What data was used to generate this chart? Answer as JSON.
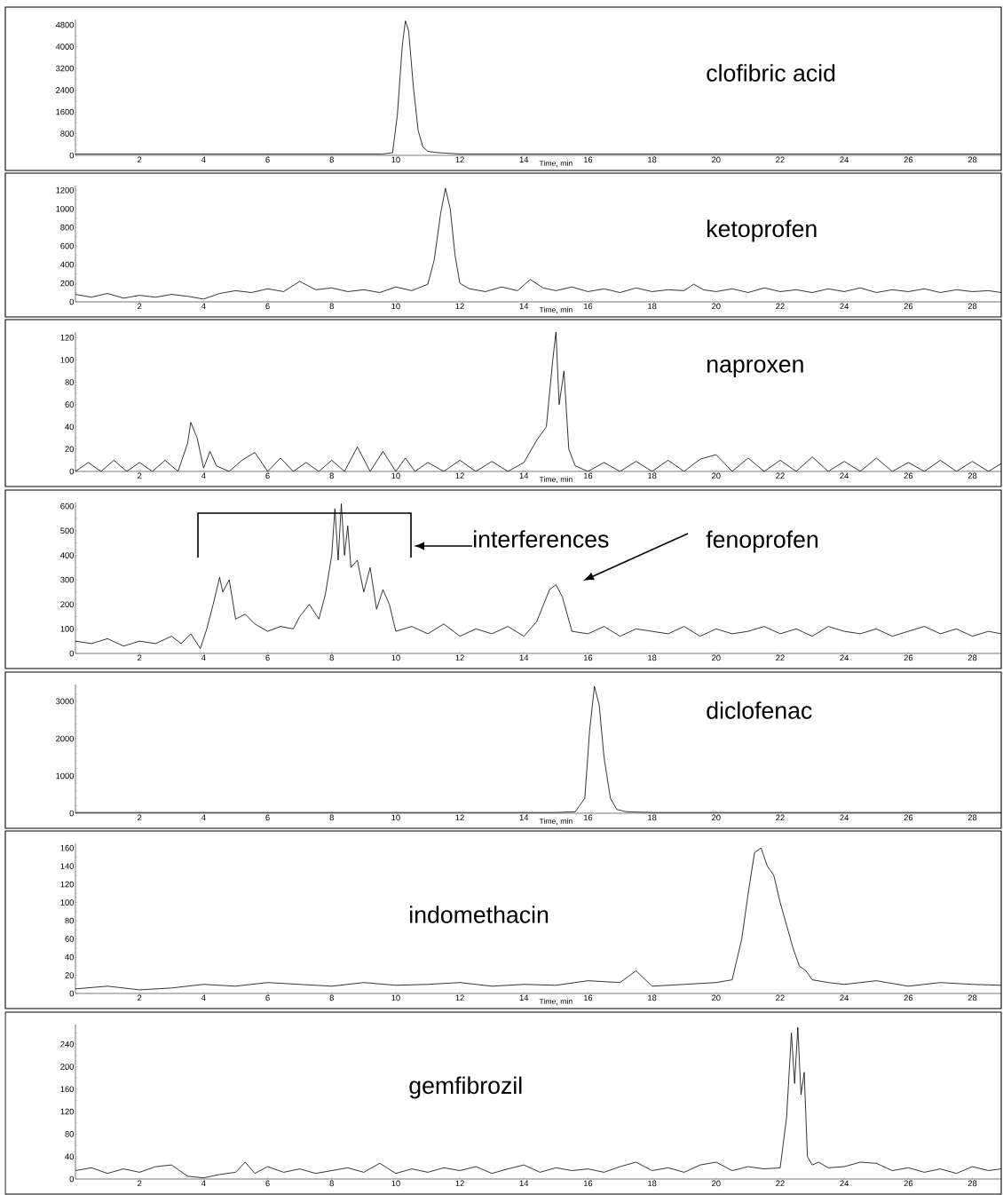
{
  "chart_data": [
    {
      "type": "line",
      "title": "clofibric acid",
      "xlabel": "Time, min",
      "color": "#000000",
      "xlim": [
        0,
        28.9
      ],
      "xticks": [
        2,
        4,
        6,
        8,
        10,
        12,
        14,
        16,
        18,
        20,
        22,
        24,
        26,
        28
      ],
      "ylim": [
        0,
        5000
      ],
      "yticks": [
        0,
        {
          "value": 400,
          "label": null
        },
        800,
        {
          "value": 1200,
          "label": null
        },
        1600,
        {
          "value": 2000,
          "label": null
        },
        2400,
        {
          "value": 2800,
          "label": null
        },
        3200,
        {
          "value": 3600,
          "label": null
        },
        4000,
        {
          "value": 4400,
          "label": null
        },
        4800
      ],
      "x": [
        0,
        1,
        2,
        3,
        4,
        5,
        6,
        7,
        8,
        9,
        9.6,
        9.9,
        10.05,
        10.2,
        10.3,
        10.4,
        10.55,
        10.7,
        10.85,
        11,
        11.3,
        12,
        13,
        14,
        15,
        16,
        17,
        18,
        19,
        20,
        21,
        22,
        23,
        24,
        25,
        26,
        27,
        28,
        28.9
      ],
      "values": [
        50,
        50,
        50,
        50,
        50,
        50,
        50,
        50,
        50,
        50,
        50,
        100,
        1500,
        4000,
        4950,
        4600,
        2500,
        900,
        300,
        150,
        100,
        50,
        50,
        50,
        50,
        50,
        50,
        50,
        50,
        50,
        50,
        50,
        50,
        50,
        50,
        50,
        50,
        50,
        50
      ]
    },
    {
      "type": "line",
      "title": "ketoprofen",
      "xlabel": "Time, min",
      "color": "#000000",
      "xlim": [
        0,
        28.9
      ],
      "xticks": [
        2,
        4,
        6,
        8,
        10,
        12,
        14,
        16,
        18,
        20,
        22,
        24,
        26,
        28
      ],
      "ylim": [
        0,
        1250
      ],
      "yticks": [
        0,
        {
          "value": 100,
          "label": null
        },
        200,
        {
          "value": 300,
          "label": null
        },
        400,
        {
          "value": 500,
          "label": null
        },
        600,
        {
          "value": 700,
          "label": null
        },
        800,
        {
          "value": 900,
          "label": null
        },
        1000,
        {
          "value": 1100,
          "label": null
        },
        1200
      ],
      "x": [
        0,
        0.5,
        1,
        1.5,
        2,
        2.5,
        3,
        3.5,
        4,
        4.5,
        5,
        5.5,
        6,
        6.5,
        7,
        7.5,
        8,
        8.5,
        9,
        9.5,
        10,
        10.5,
        11,
        11.2,
        11.4,
        11.55,
        11.7,
        11.85,
        12,
        12.3,
        12.8,
        13.3,
        13.8,
        14.2,
        14.6,
        15,
        15.5,
        16,
        16.5,
        17,
        17.5,
        18,
        18.5,
        19,
        19.3,
        19.6,
        20,
        20.5,
        21,
        21.5,
        22,
        22.5,
        23,
        23.5,
        24,
        24.5,
        25,
        25.5,
        26,
        26.5,
        27,
        27.5,
        28,
        28.5,
        28.9
      ],
      "values": [
        80,
        50,
        90,
        40,
        70,
        50,
        80,
        60,
        30,
        90,
        120,
        100,
        140,
        110,
        220,
        130,
        150,
        110,
        130,
        100,
        160,
        120,
        190,
        450,
        950,
        1220,
        1000,
        500,
        200,
        140,
        110,
        160,
        120,
        240,
        150,
        120,
        160,
        110,
        140,
        100,
        150,
        110,
        130,
        120,
        190,
        130,
        110,
        140,
        100,
        150,
        110,
        130,
        100,
        140,
        110,
        150,
        100,
        130,
        110,
        140,
        100,
        130,
        110,
        120,
        100
      ]
    },
    {
      "type": "line",
      "title": "naproxen",
      "xlabel": "Time, min",
      "color": "#000000",
      "xlim": [
        0,
        28.9
      ],
      "xticks": [
        2,
        4,
        6,
        8,
        10,
        12,
        14,
        16,
        18,
        20,
        22,
        24,
        26,
        28
      ],
      "ylim": [
        0,
        125
      ],
      "yticks": [
        0,
        {
          "value": 10,
          "label": null
        },
        20,
        {
          "value": 30,
          "label": null
        },
        40,
        {
          "value": 50,
          "label": null
        },
        60,
        {
          "value": 70,
          "label": null
        },
        80,
        {
          "value": 90,
          "label": null
        },
        100,
        {
          "value": 110,
          "label": null
        },
        120
      ],
      "x": [
        0,
        0.4,
        0.8,
        1.2,
        1.6,
        2,
        2.4,
        2.8,
        3.2,
        3.5,
        3.6,
        3.8,
        4,
        4.2,
        4.4,
        4.8,
        5.2,
        5.6,
        6,
        6.4,
        6.8,
        7.2,
        7.6,
        8,
        8.4,
        8.8,
        9.2,
        9.6,
        10,
        10.3,
        10.6,
        11,
        11.5,
        12,
        12.5,
        13,
        13.5,
        14,
        14.4,
        14.7,
        14.9,
        15.0,
        15.1,
        15.25,
        15.4,
        15.6,
        16,
        16.5,
        17,
        17.5,
        18,
        18.5,
        19,
        19.5,
        20,
        20.5,
        21,
        21.5,
        22,
        22.5,
        23,
        23.5,
        24,
        24.5,
        25,
        25.5,
        26,
        26.5,
        27,
        27.5,
        28,
        28.5,
        28.9
      ],
      "values": [
        0,
        8,
        0,
        10,
        0,
        8,
        0,
        10,
        0,
        25,
        44,
        30,
        3,
        18,
        5,
        0,
        10,
        17,
        0,
        12,
        0,
        8,
        0,
        10,
        0,
        22,
        0,
        18,
        0,
        12,
        0,
        8,
        0,
        10,
        0,
        9,
        0,
        8,
        28,
        40,
        100,
        125,
        60,
        90,
        20,
        5,
        0,
        8,
        0,
        9,
        0,
        10,
        0,
        11,
        15,
        0,
        12,
        0,
        10,
        0,
        13,
        0,
        9,
        0,
        12,
        0,
        8,
        0,
        10,
        0,
        9,
        0,
        7
      ]
    },
    {
      "type": "line",
      "title": "fenoprofen",
      "annotations": [
        "interferences"
      ],
      "color": "#000000",
      "xlim": [
        0,
        28.9
      ],
      "xticks": [
        2,
        4,
        6,
        8,
        10,
        12,
        14,
        16,
        18,
        20,
        22,
        24,
        26,
        28
      ],
      "ylim": [
        0,
        615
      ],
      "yticks": [
        0,
        {
          "value": 50,
          "label": null
        },
        100,
        {
          "value": 150,
          "label": null
        },
        200,
        {
          "value": 250,
          "label": null
        },
        300,
        {
          "value": 350,
          "label": null
        },
        400,
        {
          "value": 450,
          "label": null
        },
        500,
        {
          "value": 550,
          "label": null
        },
        600
      ],
      "x": [
        0,
        0.5,
        1,
        1.5,
        2,
        2.5,
        3,
        3.3,
        3.6,
        3.9,
        4.1,
        4.3,
        4.5,
        4.6,
        4.8,
        5,
        5.3,
        5.6,
        6,
        6.4,
        6.8,
        7,
        7.3,
        7.6,
        7.8,
        8,
        8.1,
        8.2,
        8.3,
        8.4,
        8.5,
        8.6,
        8.8,
        9,
        9.2,
        9.4,
        9.6,
        9.8,
        10,
        10.5,
        11,
        11.5,
        12,
        12.5,
        13,
        13.5,
        14,
        14.4,
        14.8,
        15,
        15.2,
        15.5,
        16,
        16.5,
        17,
        17.5,
        18,
        18.5,
        19,
        19.5,
        20,
        20.5,
        21,
        21.5,
        22,
        22.5,
        23,
        23.5,
        24,
        24.5,
        25,
        25.5,
        26,
        26.5,
        27,
        27.5,
        28,
        28.5,
        28.9
      ],
      "values": [
        50,
        40,
        60,
        30,
        50,
        40,
        70,
        40,
        80,
        20,
        100,
        200,
        310,
        250,
        300,
        140,
        160,
        120,
        90,
        110,
        100,
        150,
        200,
        140,
        240,
        400,
        590,
        380,
        610,
        400,
        520,
        350,
        380,
        250,
        350,
        180,
        260,
        200,
        90,
        110,
        80,
        120,
        70,
        100,
        80,
        110,
        70,
        130,
        260,
        280,
        230,
        90,
        80,
        110,
        70,
        100,
        90,
        80,
        110,
        70,
        100,
        80,
        90,
        110,
        80,
        100,
        70,
        110,
        90,
        80,
        100,
        70,
        90,
        110,
        80,
        100,
        70,
        90,
        80
      ]
    },
    {
      "type": "line",
      "title": "diclofenac",
      "xlabel": "Time, min",
      "color": "#000000",
      "xlim": [
        0,
        28.9
      ],
      "xticks": [
        2,
        4,
        6,
        8,
        10,
        12,
        14,
        16,
        18,
        20,
        22,
        24,
        26,
        28
      ],
      "ylim": [
        0,
        3450
      ],
      "yticks": [
        0,
        {
          "value": 200,
          "label": null
        },
        {
          "value": 400,
          "label": null
        },
        {
          "value": 600,
          "label": null
        },
        {
          "value": 800,
          "label": null
        },
        1000,
        {
          "value": 1200,
          "label": null
        },
        {
          "value": 1400,
          "label": null
        },
        {
          "value": 1600,
          "label": null
        },
        {
          "value": 1800,
          "label": null
        },
        2000,
        {
          "value": 2200,
          "label": null
        },
        {
          "value": 2400,
          "label": null
        },
        {
          "value": 2600,
          "label": null
        },
        {
          "value": 2800,
          "label": null
        },
        3000,
        {
          "value": 3200,
          "label": null
        },
        {
          "value": 3400,
          "label": null
        }
      ],
      "x": [
        0,
        2,
        4,
        6,
        8,
        10,
        12,
        14,
        15,
        15.6,
        15.9,
        16.05,
        16.2,
        16.35,
        16.5,
        16.7,
        16.9,
        17.2,
        18,
        20,
        22,
        24,
        26,
        28,
        28.9
      ],
      "values": [
        20,
        20,
        20,
        20,
        20,
        20,
        20,
        20,
        20,
        40,
        400,
        2200,
        3400,
        2900,
        1500,
        400,
        100,
        40,
        20,
        20,
        20,
        20,
        20,
        20,
        20
      ]
    },
    {
      "type": "line",
      "title": "indomethacin",
      "xlabel": "Time, min",
      "color": "#000000",
      "xlim": [
        0,
        28.9
      ],
      "xticks": [
        2,
        4,
        6,
        8,
        10,
        12,
        14,
        16,
        18,
        20,
        22,
        24,
        26,
        28
      ],
      "ylim": [
        0,
        165
      ],
      "yticks": [
        0,
        {
          "value": 10,
          "label": null
        },
        20,
        {
          "value": 30,
          "label": null
        },
        40,
        {
          "value": 50,
          "label": null
        },
        60,
        {
          "value": 70,
          "label": null
        },
        80,
        {
          "value": 90,
          "label": null
        },
        100,
        {
          "value": 110,
          "label": null
        },
        120,
        {
          "value": 130,
          "label": null
        },
        140,
        {
          "value": 150,
          "label": null
        },
        160
      ],
      "x": [
        0,
        1,
        2,
        3,
        4,
        5,
        6,
        7,
        8,
        9,
        10,
        11,
        12,
        13,
        14,
        15,
        16,
        17,
        17.5,
        18,
        19,
        20,
        20.5,
        20.8,
        21,
        21.2,
        21.4,
        21.6,
        21.8,
        22,
        22.2,
        22.4,
        22.6,
        22.8,
        23,
        23.5,
        24,
        25,
        26,
        27,
        28,
        28.9
      ],
      "values": [
        5,
        8,
        4,
        6,
        10,
        8,
        12,
        10,
        8,
        12,
        9,
        10,
        12,
        8,
        10,
        9,
        14,
        12,
        25,
        8,
        10,
        12,
        15,
        60,
        110,
        155,
        160,
        140,
        130,
        100,
        75,
        50,
        30,
        25,
        15,
        12,
        10,
        14,
        8,
        12,
        10,
        9
      ]
    },
    {
      "type": "line",
      "title": "gemfibrozil",
      "color": "#000000",
      "xlim": [
        0,
        28.9
      ],
      "xticks": [
        2,
        4,
        6,
        8,
        10,
        12,
        14,
        16,
        18,
        20,
        22,
        24,
        26,
        28
      ],
      "ylim": [
        0,
        275
      ],
      "yticks": [
        0,
        {
          "value": 20,
          "label": null
        },
        40,
        {
          "value": 60,
          "label": null
        },
        80,
        {
          "value": 100,
          "label": null
        },
        120,
        {
          "value": 140,
          "label": null
        },
        160,
        {
          "value": 180,
          "label": null
        },
        200,
        {
          "value": 220,
          "label": null
        },
        240,
        {
          "value": 260,
          "label": null
        }
      ],
      "x": [
        0,
        0.5,
        1,
        1.5,
        2,
        2.5,
        3,
        3.5,
        4,
        4.5,
        5,
        5.3,
        5.6,
        6,
        6.5,
        7,
        7.5,
        8,
        8.5,
        9,
        9.5,
        10,
        10.5,
        11,
        11.5,
        12,
        12.5,
        13,
        13.5,
        14,
        14.5,
        15,
        15.5,
        16,
        16.5,
        17,
        17.5,
        18,
        18.5,
        19,
        19.5,
        20,
        20.5,
        21,
        21.5,
        22,
        22.2,
        22.35,
        22.45,
        22.55,
        22.65,
        22.75,
        22.85,
        23,
        23.2,
        23.5,
        24,
        24.5,
        25,
        25.5,
        26,
        26.5,
        27,
        27.5,
        28,
        28.5,
        28.9
      ],
      "values": [
        15,
        20,
        10,
        18,
        12,
        22,
        25,
        5,
        2,
        8,
        12,
        30,
        10,
        22,
        12,
        18,
        10,
        15,
        20,
        12,
        28,
        10,
        18,
        12,
        20,
        15,
        22,
        10,
        18,
        25,
        12,
        20,
        15,
        18,
        12,
        22,
        30,
        15,
        20,
        12,
        25,
        30,
        15,
        22,
        18,
        20,
        110,
        260,
        170,
        270,
        150,
        190,
        40,
        25,
        30,
        20,
        22,
        30,
        28,
        15,
        20,
        12,
        18,
        10,
        22,
        15,
        18
      ]
    }
  ]
}
